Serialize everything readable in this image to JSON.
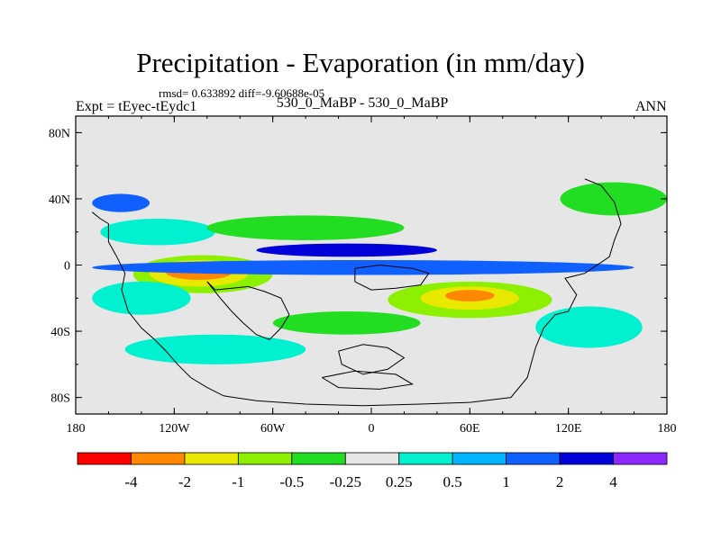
{
  "chart_data": {
    "type": "heatmap",
    "title": "Precipitation - Evaporation (in mm/day)",
    "stats_text": "rmsd= 0.633892 diff=-9.60688e-05",
    "left_label": "Expt = tEyec-tEydc1",
    "center_label": "530_0_MaBP - 530_0_MaBP",
    "right_label": "ANN",
    "x_axis": {
      "range": [
        -180,
        180
      ],
      "ticks": [
        -180,
        -120,
        -60,
        0,
        60,
        120,
        180
      ],
      "tick_labels": [
        "180",
        "120W",
        "60W",
        "0",
        "60E",
        "120E",
        "180"
      ]
    },
    "y_axis": {
      "range": [
        -90,
        90
      ],
      "ticks": [
        80,
        40,
        0,
        -40,
        -80
      ],
      "tick_labels": [
        "80N",
        "40N",
        "0",
        "40S",
        "80S"
      ]
    },
    "colorbar": {
      "colors": [
        "#ff0000",
        "#ff8800",
        "#e8e800",
        "#8cf000",
        "#22dd22",
        "#e6e6e6",
        "#00f0d0",
        "#00b4ff",
        "#1060ff",
        "#0000d8",
        "#8c28ff"
      ],
      "levels": [
        -4,
        -2,
        -1,
        -0.5,
        -0.25,
        0.25,
        0.5,
        1,
        2,
        4
      ],
      "level_labels": [
        "-4",
        "-2",
        "-1",
        "-0.5",
        "-0.25",
        "0.25",
        "0.5",
        "1",
        "2",
        "4"
      ]
    },
    "background_color": "#e6e6e6",
    "regions": [
      {
        "name": "south-pacific-gyre-outer",
        "level": "negative-small",
        "color": "#8cf000",
        "lon": [
          -145,
          -60
        ],
        "lat": [
          -17,
          6
        ]
      },
      {
        "name": "south-pacific-gyre-mid",
        "level": "negative-medium",
        "color": "#e8e800",
        "lon": [
          -135,
          -75
        ],
        "lat": [
          -13,
          3
        ]
      },
      {
        "name": "south-pacific-gyre-core",
        "level": "negative-large",
        "color": "#ff8800",
        "lon": [
          -125,
          -85
        ],
        "lat": [
          -9,
          0
        ]
      },
      {
        "name": "tethys-gyre-outer",
        "level": "negative-small",
        "color": "#8cf000",
        "lon": [
          10,
          110
        ],
        "lat": [
          -32,
          -10
        ]
      },
      {
        "name": "tethys-gyre-mid",
        "level": "negative-medium",
        "color": "#e8e800",
        "lon": [
          30,
          90
        ],
        "lat": [
          -27,
          -13
        ]
      },
      {
        "name": "tethys-gyre-core",
        "level": "negative-large",
        "color": "#ff8800",
        "lon": [
          45,
          75
        ],
        "lat": [
          -22,
          -15
        ]
      },
      {
        "name": "itcz-north",
        "level": "positive-medium",
        "color": "#1060ff",
        "lon": [
          -170,
          160
        ],
        "lat": [
          -6,
          3
        ]
      },
      {
        "name": "equatorial-band",
        "level": "positive-large",
        "color": "#0000d8",
        "lon": [
          -70,
          40
        ],
        "lat": [
          5,
          13
        ]
      },
      {
        "name": "south-subtropics",
        "level": "positive-small",
        "color": "#00f0d0",
        "lon": [
          -170,
          -110
        ],
        "lat": [
          -30,
          -10
        ]
      },
      {
        "name": "north-pacific",
        "level": "positive-small",
        "color": "#00f0d0",
        "lon": [
          -165,
          -95
        ],
        "lat": [
          12,
          28
        ]
      },
      {
        "name": "north-midlatitude",
        "level": "negative-small",
        "color": "#22dd22",
        "lon": [
          -100,
          20
        ],
        "lat": [
          15,
          30
        ]
      },
      {
        "name": "high-latitude-south",
        "level": "positive-small",
        "color": "#00f0d0",
        "lon": [
          -150,
          -40
        ],
        "lat": [
          -60,
          -42
        ]
      },
      {
        "name": "storm-track-40n",
        "level": "positive-medium",
        "color": "#1060ff",
        "lon": [
          -170,
          -135
        ],
        "lat": [
          32,
          43
        ]
      },
      {
        "name": "south-ocean-40s",
        "level": "negative-small",
        "color": "#22dd22",
        "lon": [
          -60,
          30
        ],
        "lat": [
          -42,
          -28
        ]
      },
      {
        "name": "east-margin-north",
        "level": "negative-small",
        "color": "#22dd22",
        "lon": [
          115,
          180
        ],
        "lat": [
          30,
          50
        ]
      },
      {
        "name": "east-margin-south",
        "level": "positive-small",
        "color": "#00f0d0",
        "lon": [
          100,
          165
        ],
        "lat": [
          -50,
          -25
        ]
      }
    ],
    "coastline": [
      [
        [
          -170,
          32
        ],
        [
          -165,
          28
        ],
        [
          -160,
          25
        ],
        [
          -160,
          14
        ],
        [
          -155,
          5
        ],
        [
          -150,
          -5
        ],
        [
          -152,
          -15
        ],
        [
          -148,
          -28
        ],
        [
          -140,
          -38
        ],
        [
          -132,
          -45
        ],
        [
          -125,
          -52
        ],
        [
          -118,
          -60
        ],
        [
          -110,
          -68
        ],
        [
          -100,
          -74
        ],
        [
          -90,
          -79
        ],
        [
          -70,
          -82
        ],
        [
          -40,
          -84
        ],
        [
          -5,
          -85
        ],
        [
          30,
          -84
        ],
        [
          60,
          -83
        ],
        [
          85,
          -80
        ],
        [
          95,
          -68
        ],
        [
          100,
          -50
        ],
        [
          105,
          -38
        ],
        [
          112,
          -30
        ],
        [
          120,
          -28
        ],
        [
          125,
          -18
        ],
        [
          118,
          -8
        ],
        [
          130,
          -5
        ],
        [
          145,
          5
        ],
        [
          148,
          15
        ],
        [
          152,
          25
        ],
        [
          148,
          38
        ],
        [
          140,
          48
        ],
        [
          130,
          52
        ]
      ],
      [
        [
          -100,
          -10
        ],
        [
          -95,
          -15
        ],
        [
          -75,
          -13
        ],
        [
          -65,
          -16
        ],
        [
          -55,
          -20
        ],
        [
          -50,
          -30
        ],
        [
          -55,
          -38
        ],
        [
          -62,
          -45
        ],
        [
          -70,
          -42
        ],
        [
          -78,
          -35
        ],
        [
          -85,
          -28
        ],
        [
          -92,
          -20
        ],
        [
          -100,
          -10
        ]
      ],
      [
        [
          -10,
          -2
        ],
        [
          5,
          0
        ],
        [
          25,
          -2
        ],
        [
          35,
          -5
        ],
        [
          30,
          -12
        ],
        [
          15,
          -14
        ],
        [
          0,
          -15
        ],
        [
          -10,
          -10
        ],
        [
          -10,
          -2
        ]
      ],
      [
        [
          -20,
          -52
        ],
        [
          -5,
          -48
        ],
        [
          10,
          -50
        ],
        [
          20,
          -56
        ],
        [
          10,
          -63
        ],
        [
          -5,
          -66
        ],
        [
          -18,
          -60
        ],
        [
          -20,
          -52
        ]
      ],
      [
        [
          -30,
          -68
        ],
        [
          -10,
          -64
        ],
        [
          15,
          -66
        ],
        [
          25,
          -72
        ],
        [
          5,
          -75
        ],
        [
          -20,
          -74
        ],
        [
          -30,
          -68
        ]
      ]
    ]
  }
}
